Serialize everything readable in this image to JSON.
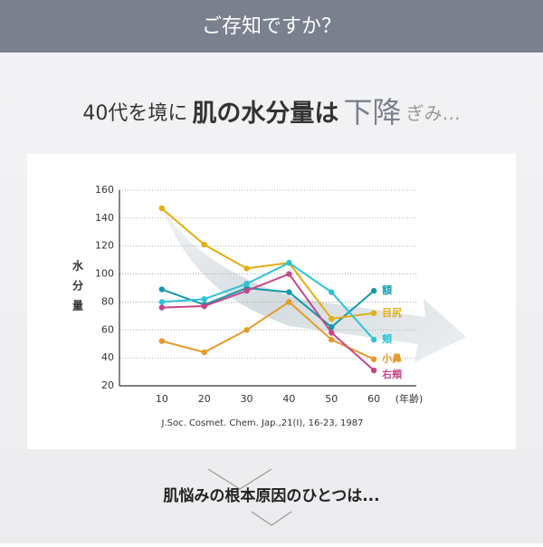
{
  "banner": "ご存知ですか？",
  "headline": {
    "part1": "40代を境に",
    "part2": "肌の水分量は",
    "part3": "下降",
    "part4": "ぎみ…"
  },
  "footer": "肌悩みの根本原因のひとつは...",
  "chart_data": {
    "type": "line",
    "y_label": "水分量",
    "x_label": "(年齢)",
    "source": "J.Soc. Cosmet. Chem. Jap.,21(Ⅰ), 16-23, 1987",
    "x": [
      10,
      20,
      30,
      40,
      50,
      60
    ],
    "xlim": [
      0,
      70
    ],
    "xticks": [
      10,
      20,
      30,
      40,
      50,
      60
    ],
    "ylim": [
      20,
      160
    ],
    "yticks": [
      20,
      40,
      60,
      80,
      100,
      120,
      140,
      160
    ],
    "grid": true,
    "series": [
      {
        "name": "額",
        "color": "#139aa8",
        "values": [
          89,
          78,
          90,
          87,
          62,
          88
        ]
      },
      {
        "name": "目尻",
        "color": "#e3ae12",
        "values": [
          147,
          121,
          104,
          108,
          68,
          72
        ]
      },
      {
        "name": "頬",
        "color": "#2cc3d6",
        "values": [
          80,
          82,
          93,
          108,
          87,
          53
        ]
      },
      {
        "name": "小鼻",
        "color": "#e69a2a",
        "values": [
          52,
          44,
          60,
          80,
          53,
          39
        ]
      },
      {
        "name": "右頬",
        "color": "#c4478a",
        "values": [
          76,
          77,
          88,
          100,
          58,
          31
        ]
      }
    ]
  }
}
